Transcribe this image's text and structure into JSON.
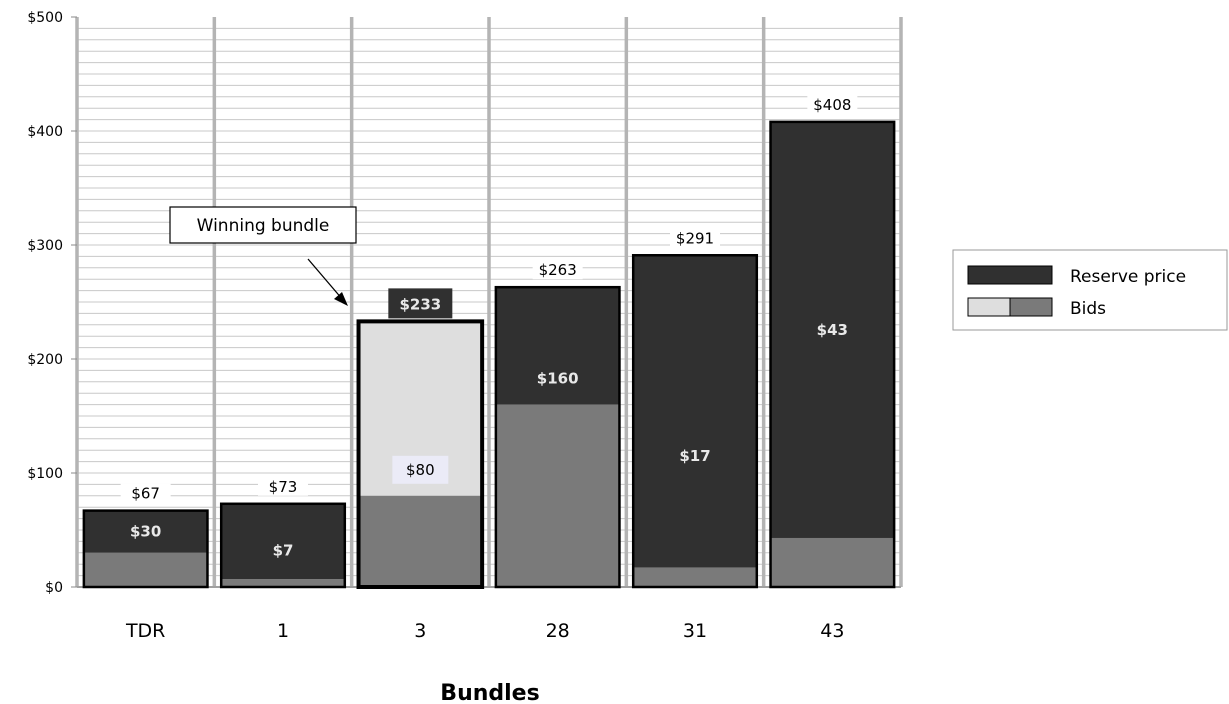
{
  "chart_data": {
    "type": "bar",
    "stacked": true,
    "categories": [
      "TDR",
      "1",
      "3",
      "28",
      "31",
      "43"
    ],
    "series": [
      {
        "name": "Reserve price",
        "values": [
          67,
          73,
          233,
          263,
          291,
          408
        ],
        "labels": [
          "$67",
          "$73",
          "$233",
          "$263",
          "$291",
          "$408"
        ]
      },
      {
        "name": "Bids",
        "values": [
          30,
          7,
          80,
          160,
          17,
          43
        ],
        "labels": [
          "$30",
          "$7",
          "$80",
          "$160",
          "$17",
          "$43"
        ]
      }
    ],
    "highlighted_category": "3",
    "xlabel": "Bundles",
    "ylabel": "",
    "ylim": [
      0,
      500
    ],
    "y_ticks": [
      0,
      100,
      200,
      300,
      400,
      500
    ],
    "y_tick_labels": [
      "$0",
      "$100",
      "$200",
      "$300",
      "$400",
      "$500"
    ],
    "grid": true,
    "legend_position": "right",
    "annotation": {
      "text": "Winning bundle",
      "target_category": "3"
    },
    "colors": {
      "reserve": "#303030",
      "bids": "#7a7a7a",
      "highlight_fill": "#dedede",
      "grid": "#c8c8c8",
      "divider": "#b4b4b4"
    }
  }
}
